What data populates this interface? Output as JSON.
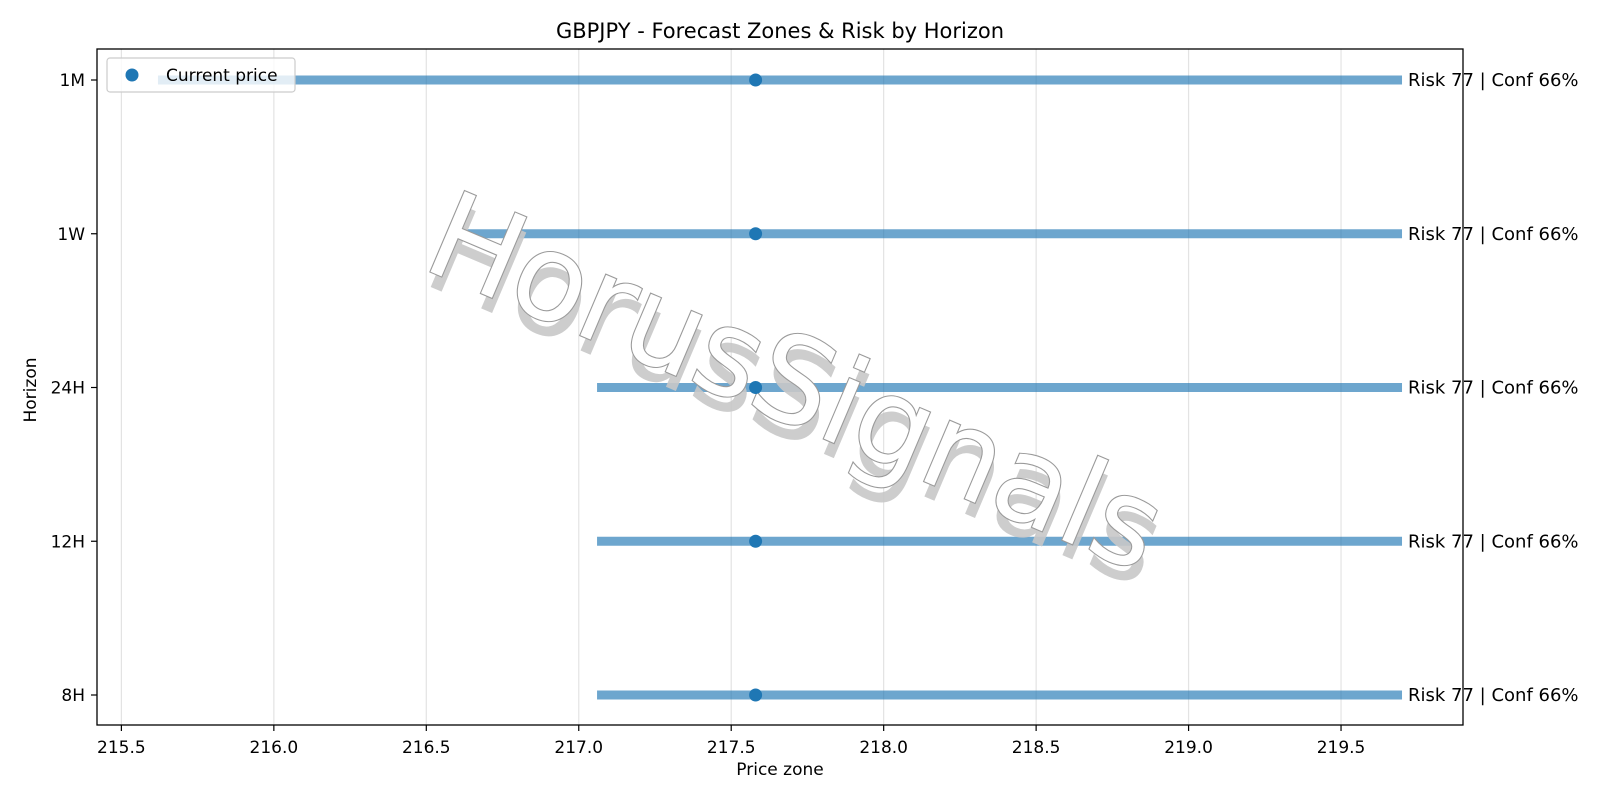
{
  "chart_data": {
    "type": "range",
    "title": "GBPJPY - Forecast Zones & Risk by Horizon",
    "xlabel": "Price zone",
    "ylabel": "Horizon",
    "xlim": [
      215.42,
      219.9
    ],
    "xticks": [
      "215.5",
      "216.0",
      "216.5",
      "217.0",
      "217.5",
      "218.0",
      "218.5",
      "219.0",
      "219.5"
    ],
    "grid": "vertical",
    "legend": {
      "placement": "top-left",
      "entries": [
        "Current price"
      ]
    },
    "series_color": "#1f77b4",
    "current_price": 217.58,
    "rows": [
      {
        "horizon": "1M",
        "low": 215.62,
        "high": 219.7,
        "label": "Risk 77 | Conf 66%"
      },
      {
        "horizon": "1W",
        "low": 216.58,
        "high": 219.7,
        "label": "Risk 77 | Conf 66%"
      },
      {
        "horizon": "24H",
        "low": 217.06,
        "high": 219.7,
        "label": "Risk 77 | Conf 66%"
      },
      {
        "horizon": "12H",
        "low": 217.06,
        "high": 219.7,
        "label": "Risk 77 | Conf 66%"
      },
      {
        "horizon": "8H",
        "low": 217.06,
        "high": 219.7,
        "label": "Risk 77 | Conf 66%"
      }
    ]
  },
  "watermark": {
    "text": "HorusSignals"
  }
}
